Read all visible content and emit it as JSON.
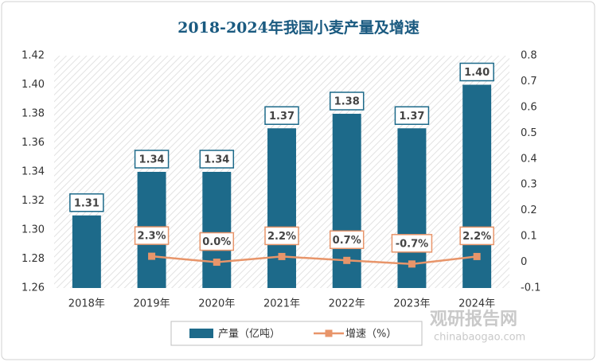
{
  "chart_data": {
    "type": "bar",
    "title": "2018-2024年我国小麦产量及增速",
    "categories": [
      "2018年",
      "2019年",
      "2020年",
      "2021年",
      "2022年",
      "2023年",
      "2024年"
    ],
    "series": [
      {
        "name": "产量（亿吨）",
        "type": "bar",
        "color": "#1d6a8a",
        "values": [
          1.31,
          1.34,
          1.34,
          1.37,
          1.38,
          1.37,
          1.4
        ],
        "value_labels": [
          "1.31",
          "1.34",
          "1.34",
          "1.37",
          "1.38",
          "1.37",
          "1.40"
        ]
      },
      {
        "name": "增速（%）",
        "type": "line",
        "axis": "y2",
        "color": "#e8956a",
        "values": [
          null,
          0.023,
          0.0,
          0.022,
          0.007,
          -0.007,
          0.022
        ],
        "value_labels": [
          null,
          "2.3%",
          "0.0%",
          "2.2%",
          "0.7%",
          "-0.7%",
          "2.2%"
        ]
      }
    ],
    "ylim": [
      1.26,
      1.42
    ],
    "yticks": [
      1.26,
      1.28,
      {
        "value": 1.3,
        "label": "1.30"
      },
      1.32,
      1.34,
      1.36,
      1.38,
      {
        "value": 1.4,
        "label": "1.40"
      },
      1.42
    ],
    "y2lim": [
      -0.1,
      0.8
    ],
    "y2ticks": [
      -0.1,
      0,
      0.1,
      0.2,
      0.3,
      0.4,
      0.5,
      0.6,
      0.7,
      0.8
    ],
    "legend": "bottom",
    "watermark": {
      "name": "观研报告网",
      "url": "chinabaogao.com"
    }
  }
}
